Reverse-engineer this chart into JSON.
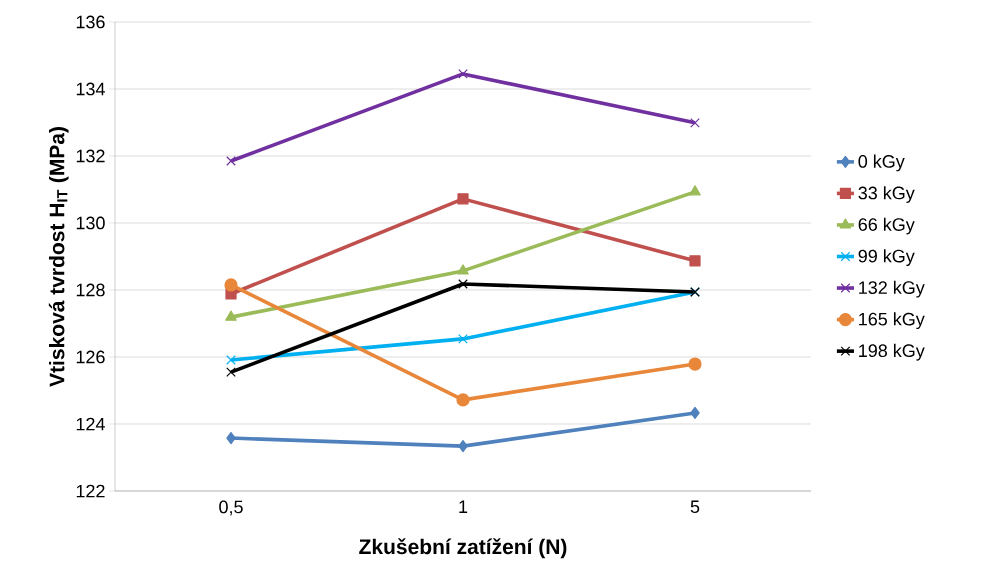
{
  "chart_data": {
    "type": "line",
    "xlabel": "Zkušební zatížení (N)",
    "ylabel": "Vtisková tvrdost H$_{IT}$ (MPa)",
    "categories": [
      "0,5",
      "1",
      "5"
    ],
    "series": [
      {
        "name": "0 kGy",
        "color": "#4f81bd",
        "marker": "diamond",
        "values": [
          123.58,
          123.34,
          124.33
        ]
      },
      {
        "name": "33 kGy",
        "color": "#c0504d",
        "marker": "square",
        "values": [
          127.88,
          130.72,
          128.87
        ]
      },
      {
        "name": "66 kGy",
        "color": "#9bbb59",
        "marker": "triangle",
        "values": [
          127.19,
          128.57,
          130.93
        ]
      },
      {
        "name": "99 kGy",
        "color": "#00b0f0",
        "marker": "cross",
        "values": [
          125.91,
          126.54,
          127.94
        ]
      },
      {
        "name": "132 kGy",
        "color": "#7030a0",
        "marker": "cross",
        "values": [
          131.85,
          134.45,
          132.99
        ]
      },
      {
        "name": "165 kGy",
        "color": "#e8873a",
        "marker": "circle",
        "values": [
          128.15,
          124.72,
          125.79
        ]
      },
      {
        "name": "198 kGy",
        "color": "#000000",
        "marker": "cross",
        "values": [
          125.55,
          128.18,
          127.94
        ]
      }
    ],
    "ylim": [
      122,
      136
    ],
    "yticks": [
      122,
      124,
      126,
      128,
      130,
      132,
      134,
      136
    ],
    "grid": "y",
    "legend": "right",
    "line_style": "solid"
  }
}
